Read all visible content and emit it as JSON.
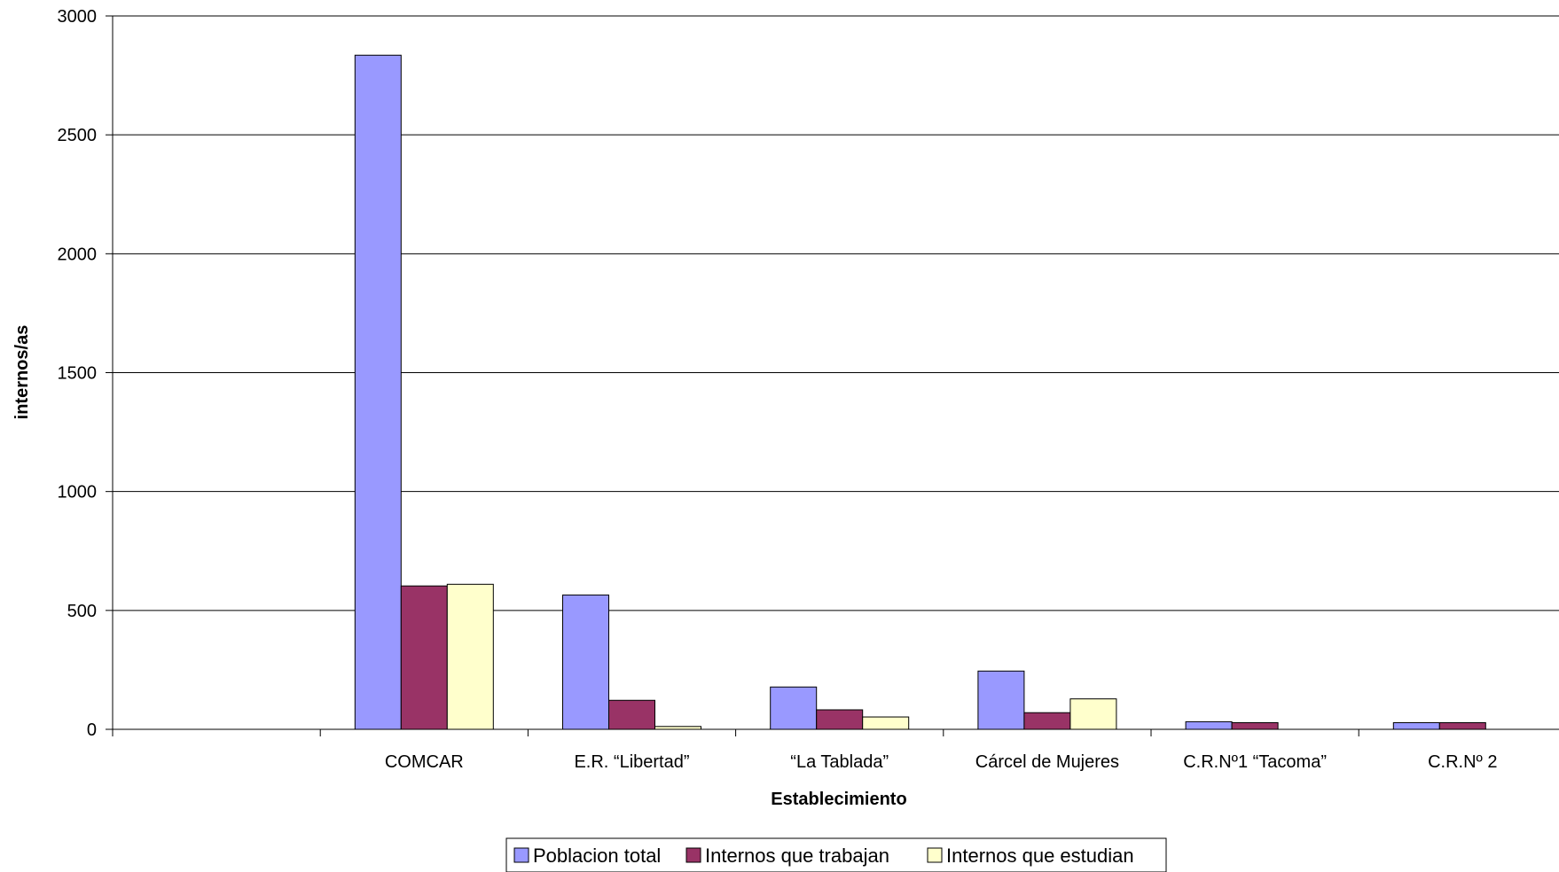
{
  "chart_data": {
    "type": "bar",
    "title": "",
    "xlabel": "Establecimiento",
    "ylabel": "internos/as",
    "ylim": [
      0,
      3000
    ],
    "yticks": [
      0,
      500,
      1000,
      1500,
      2000,
      2500,
      3000
    ],
    "categories": [
      "",
      "COMCAR",
      "E.R. “Libertad”",
      "“La Tablada”",
      "Cárcel de Mujeres",
      "C.R.Nº1  “Tacoma”",
      "C.R.Nº 2"
    ],
    "series": [
      {
        "name": "Poblacion total",
        "color": "#9999FF",
        "values": [
          null,
          2835,
          565,
          178,
          245,
          32,
          28
        ]
      },
      {
        "name": "Internos que trabajan",
        "color": "#993366",
        "values": [
          null,
          603,
          122,
          82,
          70,
          28,
          28
        ]
      },
      {
        "name": "Internos que estudian",
        "color": "#FFFFCC",
        "values": [
          null,
          610,
          12,
          52,
          128,
          0,
          0
        ]
      }
    ],
    "grid": true,
    "legend": "bottom"
  }
}
